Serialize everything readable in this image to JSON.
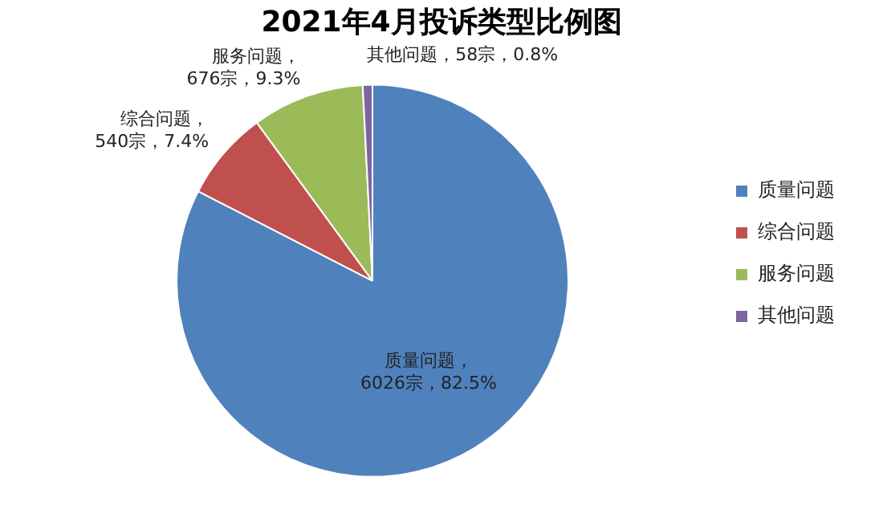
{
  "chart_data": {
    "type": "pie",
    "title": "2021年4月投诉类型比例图",
    "categories": [
      "质量问题",
      "综合问题",
      "服务问题",
      "其他问题"
    ],
    "values": [
      6026,
      540,
      676,
      58
    ],
    "colors": [
      "#4f81bd",
      "#c0504d",
      "#9bbb59",
      "#8064a2"
    ],
    "value_labels": [
      "质量问题，\n6026宗，82.5%",
      "综合问题，\n540宗，7.4%",
      "服务问题，\n676宗，9.3%",
      "其他问题，58宗，0.8%"
    ],
    "legend": "right"
  }
}
